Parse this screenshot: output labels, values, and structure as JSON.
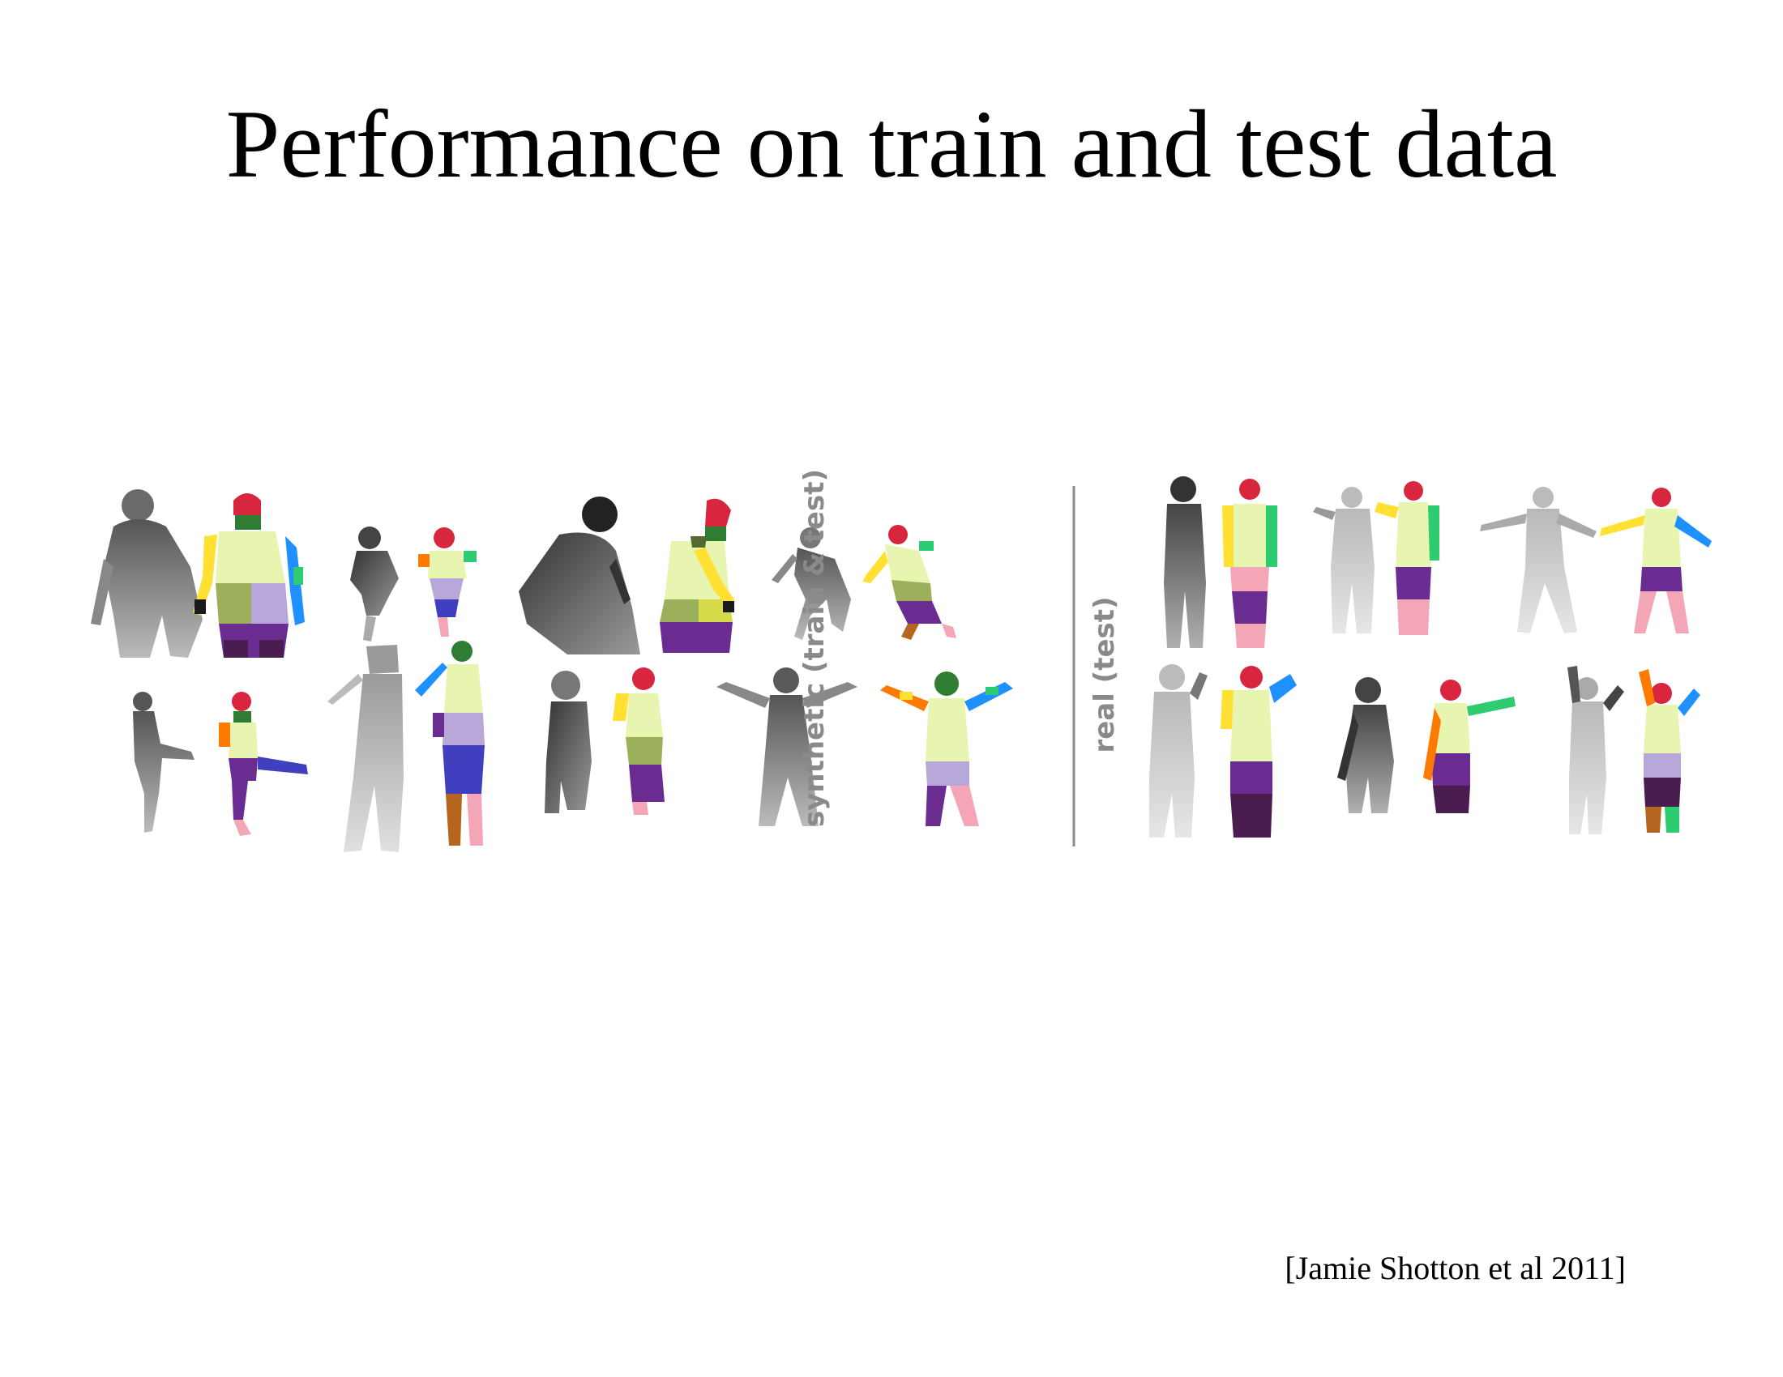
{
  "slide": {
    "title": "Performance on train and test data",
    "citation": "[Jamie Shotton et al 2011]"
  },
  "figure": {
    "label_synthetic": "synthetic (train & test)",
    "label_real": "real (test)",
    "colors": {
      "label_gray": "#8a8a8a",
      "head_red": "#d7263d",
      "torso_pale": "#e8f5b0",
      "leg_purple": "#6a2c91",
      "foot_pink": "#f4a6b7"
    }
  }
}
